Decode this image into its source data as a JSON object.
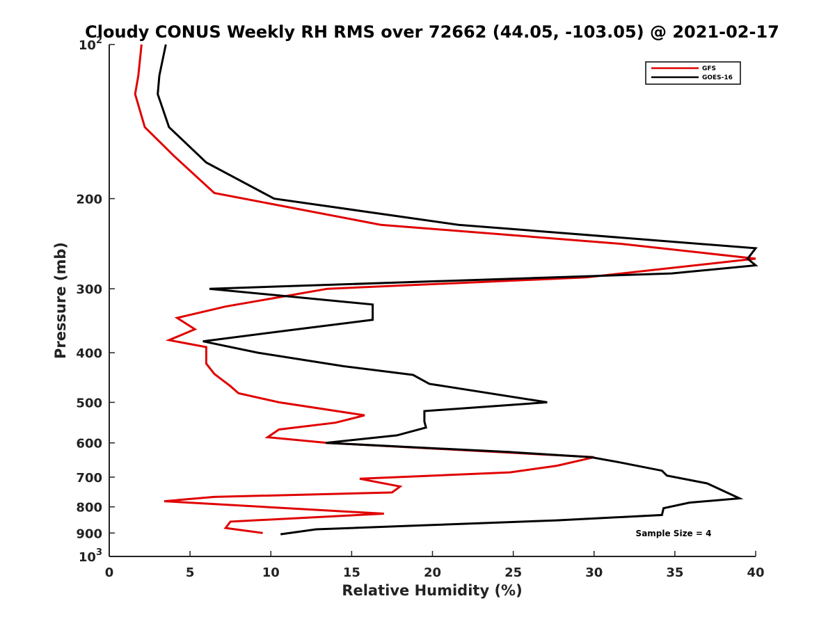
{
  "chart_data": {
    "type": "line",
    "title": "Cloudy CONUS Weekly RH RMS over 72662 (44.05, -103.05) @ 2021-02-17",
    "xlabel": "Relative Humidity (%)",
    "ylabel": "Pressure (mb)",
    "xlim": [
      0,
      40
    ],
    "ylim": [
      100,
      1000
    ],
    "y_scale": "log",
    "y_reversed": true,
    "grid": false,
    "legend_position": "top-right",
    "x_ticks": [
      0,
      5,
      10,
      15,
      20,
      25,
      30,
      35,
      40
    ],
    "y_ticks": [
      {
        "value": 100,
        "label": "10",
        "exp": "2"
      },
      {
        "value": 200,
        "label": "200"
      },
      {
        "value": 300,
        "label": "300"
      },
      {
        "value": 400,
        "label": "400"
      },
      {
        "value": 500,
        "label": "500"
      },
      {
        "value": 600,
        "label": "600"
      },
      {
        "value": 700,
        "label": "700"
      },
      {
        "value": 800,
        "label": "800"
      },
      {
        "value": 900,
        "label": "900"
      },
      {
        "value": 1000,
        "label": "10",
        "exp": "3"
      }
    ],
    "series": [
      {
        "name": "GFS",
        "color": "#e00000",
        "points": [
          [
            2.0,
            100
          ],
          [
            1.8,
            115
          ],
          [
            1.6,
            125
          ],
          [
            2.2,
            145
          ],
          [
            4.0,
            165
          ],
          [
            6.5,
            195
          ],
          [
            16.8,
            225
          ],
          [
            31.6,
            245
          ],
          [
            40.0,
            262
          ],
          [
            29.5,
            285
          ],
          [
            13.5,
            300
          ],
          [
            7.2,
            325
          ],
          [
            4.2,
            342
          ],
          [
            5.3,
            360
          ],
          [
            3.7,
            378
          ],
          [
            6.0,
            390
          ],
          [
            6.0,
            420
          ],
          [
            6.5,
            440
          ],
          [
            7.5,
            465
          ],
          [
            8.0,
            480
          ],
          [
            10.5,
            500
          ],
          [
            15.8,
            530
          ],
          [
            14.0,
            548
          ],
          [
            10.5,
            565
          ],
          [
            9.8,
            585
          ],
          [
            13.5,
            600
          ],
          [
            30.0,
            640
          ],
          [
            27.7,
            665
          ],
          [
            24.8,
            685
          ],
          [
            15.5,
            705
          ],
          [
            18.0,
            730
          ],
          [
            17.5,
            750
          ],
          [
            6.5,
            765
          ],
          [
            3.4,
            780
          ],
          [
            17.0,
            825
          ],
          [
            7.5,
            855
          ],
          [
            7.2,
            880
          ],
          [
            9.5,
            900
          ]
        ]
      },
      {
        "name": "GOES-16",
        "color": "#000000",
        "points": [
          [
            3.5,
            100
          ],
          [
            3.1,
            115
          ],
          [
            3.0,
            125
          ],
          [
            3.7,
            145
          ],
          [
            6.0,
            170
          ],
          [
            10.2,
            200
          ],
          [
            21.6,
            225
          ],
          [
            40.0,
            250
          ],
          [
            39.5,
            262
          ],
          [
            40.0,
            270
          ],
          [
            34.8,
            280
          ],
          [
            6.2,
            300
          ],
          [
            16.3,
            322
          ],
          [
            16.3,
            345
          ],
          [
            11.0,
            362
          ],
          [
            5.8,
            380
          ],
          [
            9.2,
            400
          ],
          [
            14.5,
            425
          ],
          [
            18.8,
            442
          ],
          [
            19.8,
            460
          ],
          [
            27.1,
            500
          ],
          [
            19.5,
            520
          ],
          [
            19.5,
            545
          ],
          [
            19.6,
            560
          ],
          [
            17.8,
            580
          ],
          [
            13.4,
            600
          ],
          [
            24.7,
            625
          ],
          [
            29.8,
            640
          ],
          [
            31.6,
            655
          ],
          [
            34.2,
            680
          ],
          [
            34.5,
            695
          ],
          [
            37.0,
            720
          ],
          [
            39.0,
            770
          ],
          [
            35.9,
            785
          ],
          [
            34.3,
            805
          ],
          [
            34.2,
            830
          ],
          [
            27.7,
            850
          ],
          [
            20.0,
            868
          ],
          [
            12.8,
            885
          ],
          [
            10.6,
            905
          ]
        ]
      }
    ],
    "annotation": "Sample Size = 4"
  }
}
